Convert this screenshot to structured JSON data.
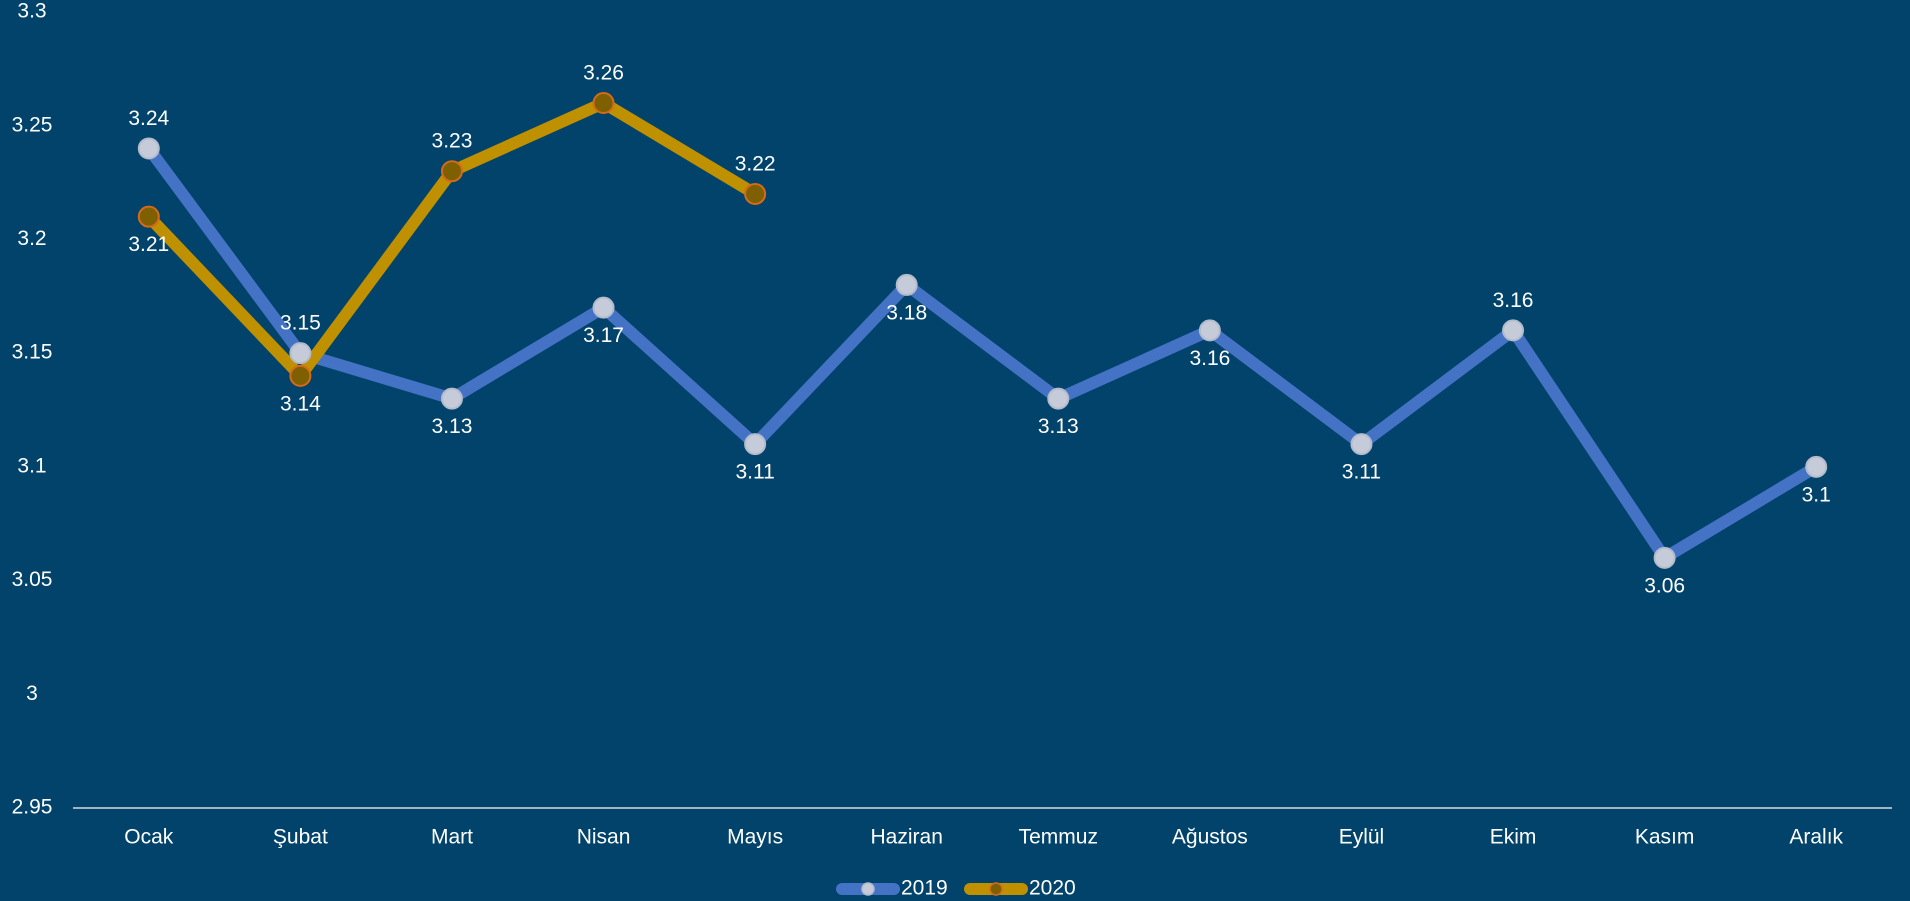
{
  "chart_data": {
    "type": "line",
    "categories": [
      "Ocak",
      "Şubat",
      "Mart",
      "Nisan",
      "Mayıs",
      "Haziran",
      "Temmuz",
      "Ağustos",
      "Eylül",
      "Ekim",
      "Kasım",
      "Aralık"
    ],
    "series": [
      {
        "name": "2019",
        "color": "#4472c4",
        "values": [
          3.24,
          3.15,
          3.13,
          3.17,
          3.11,
          3.18,
          3.13,
          3.16,
          3.11,
          3.16,
          3.06,
          3.1
        ]
      },
      {
        "name": "2020",
        "color": "#bf9000",
        "values": [
          3.21,
          3.14,
          3.23,
          3.26,
          3.22,
          null,
          null,
          null,
          null,
          null,
          null,
          null
        ]
      }
    ],
    "ylim": [
      2.95,
      3.3
    ],
    "yticks": [
      2.95,
      3,
      3.05,
      3.1,
      3.15,
      3.2,
      3.25,
      3.3
    ],
    "grid": false
  }
}
